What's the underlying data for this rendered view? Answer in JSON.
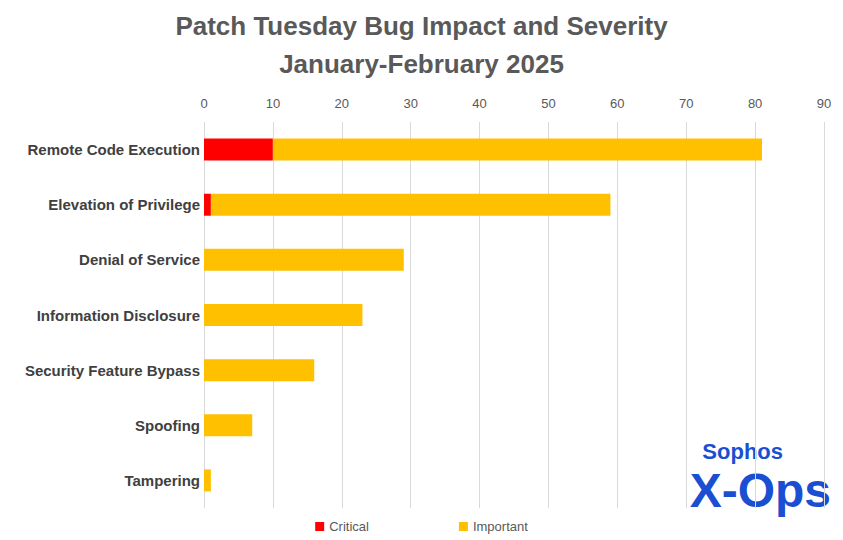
{
  "chart_data": {
    "type": "bar",
    "title": "Patch Tuesday Bug Impact and Severity",
    "subtitle": "January-February 2025",
    "orientation": "horizontal",
    "stacked": true,
    "categories": [
      "Remote Code Execution",
      "Elevation of Privilege",
      "Denial of Service",
      "Information Disclosure",
      "Security Feature Bypass",
      "Spoofing",
      "Tampering"
    ],
    "series": [
      {
        "name": "Critical",
        "color": "#ff0000",
        "values": [
          10,
          1,
          0,
          0,
          0,
          0,
          0
        ]
      },
      {
        "name": "Important",
        "color": "#ffc000",
        "values": [
          71,
          58,
          29,
          23,
          16,
          7,
          1
        ]
      }
    ],
    "xlim": [
      0,
      90
    ],
    "xticks": [
      0,
      10,
      20,
      30,
      40,
      50,
      60,
      70,
      80,
      90
    ],
    "grid": true,
    "legend": "bottom",
    "annotations": [
      "Sophos",
      "X-Ops"
    ]
  }
}
